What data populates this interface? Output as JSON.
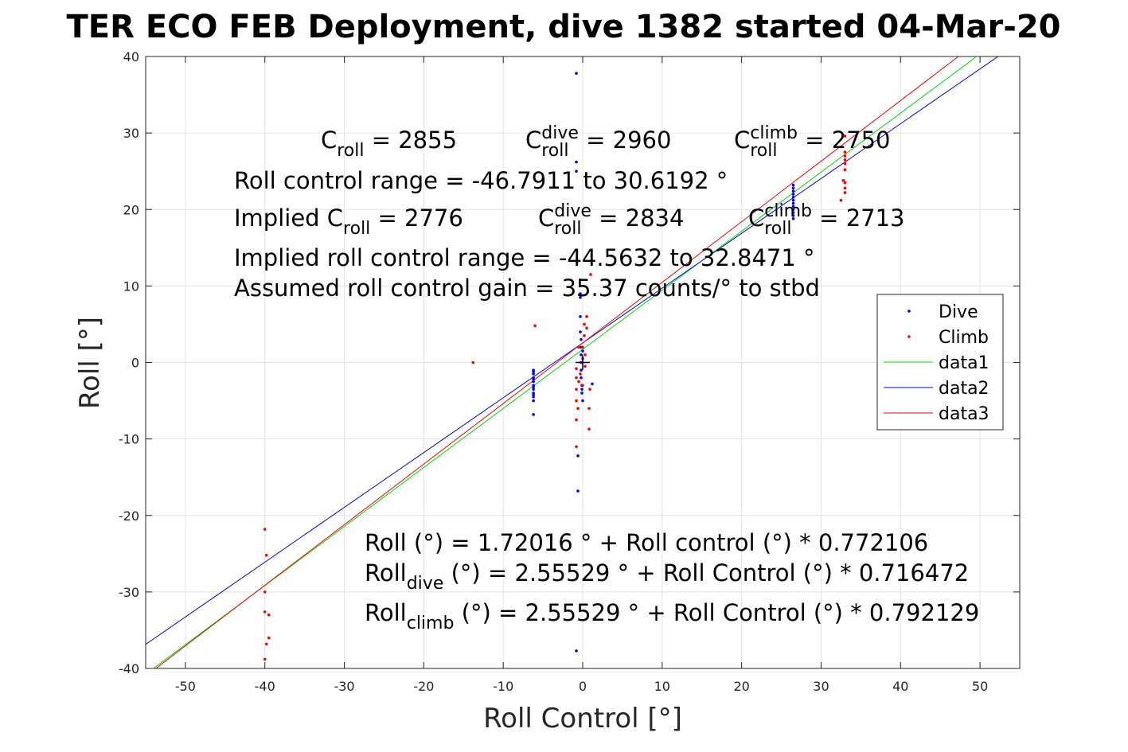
{
  "chart_data": {
    "type": "scatter",
    "title": "TER ECO FEB Deployment, dive 1382 started 04-Mar-20",
    "xlabel": "Roll Control [°]",
    "ylabel": "Roll [°]",
    "xlim": [
      -55,
      55
    ],
    "ylim": [
      -40,
      40
    ],
    "xticks": [
      -50,
      -40,
      -30,
      -20,
      -10,
      0,
      10,
      20,
      30,
      40,
      50
    ],
    "yticks": [
      -40,
      -30,
      -20,
      -10,
      0,
      10,
      20,
      30,
      40
    ],
    "grid": true,
    "legend_position": "right",
    "series": [
      {
        "name": "Dive",
        "kind": "points",
        "color": "#0000ff",
        "x": [
          -6.2,
          -6.2,
          -6.2,
          -6.2,
          -6.2,
          -6.2,
          -6.2,
          -6.2,
          -6.2,
          -6.2,
          -6.2,
          -6.2,
          -6.2,
          -6.2,
          -0.8,
          -0.8,
          -0.8,
          -0.8,
          -0.6,
          -0.6,
          -0.3,
          -0.3,
          -0.3,
          -0.3,
          -0.2,
          -0.2,
          -0.2,
          -0.2,
          -0.2,
          -0.2,
          -0.1,
          -0.1,
          -0.1,
          0,
          0,
          0,
          1.2,
          26.5,
          26.5,
          26.5,
          26.5,
          26.5,
          26.5,
          26.5,
          26.5,
          26.5,
          26.5,
          26.5,
          26.5
        ],
        "y": [
          -1,
          -1.5,
          -2,
          -2.5,
          -3,
          -3.5,
          -4,
          -4.5,
          -5,
          -6.8,
          -1.2,
          -2.2,
          -3.2,
          -4.2,
          37.8,
          26.2,
          25.0,
          -37.7,
          -16.8,
          -12.2,
          9.0,
          8.5,
          6.0,
          4.0,
          3.0,
          2.0,
          1.0,
          0,
          -1.0,
          -2.0,
          -3.0,
          -3.5,
          -4.0,
          -5.0,
          0.5,
          1.5,
          -2.8,
          23.2,
          22.8,
          22.4,
          22.0,
          21.6,
          21.2,
          20.8,
          20.4,
          20.0,
          19.6,
          19.2,
          18.8
        ]
      },
      {
        "name": "Climb",
        "kind": "points",
        "color": "#ff0000",
        "x": [
          -40,
          -39.8,
          -40,
          -40,
          -39.5,
          -39.5,
          -39.8,
          -40,
          -13.8,
          -6,
          -0.8,
          -0.8,
          -0.8,
          -0.8,
          -0.8,
          -0.8,
          -0.6,
          -0.5,
          -0.5,
          -0.3,
          -0.3,
          0,
          0,
          0,
          0.2,
          0.2,
          0.3,
          0.3,
          0.5,
          0.5,
          0.8,
          0.8,
          0.9,
          1,
          33,
          33,
          33,
          33,
          33,
          33,
          33,
          33,
          33,
          32.5,
          32.8
        ],
        "y": [
          -21.8,
          -25.2,
          -30,
          -32.6,
          -33,
          -36,
          -36.8,
          -38.8,
          0,
          4.8,
          -0.8,
          -2.0,
          -3.5,
          -5.0,
          -7.5,
          -11,
          -6.0,
          2.0,
          -2.5,
          10.8,
          -1.5,
          2.0,
          0.5,
          -3.0,
          3.5,
          5.0,
          1.0,
          -0.5,
          4.5,
          6.0,
          -6.0,
          -8.7,
          -3.5,
          11.5,
          29.6,
          27.5,
          27.0,
          26.5,
          26.0,
          25.2,
          23.5,
          22.8,
          22.2,
          21.2,
          23.8
        ]
      },
      {
        "name": "data1",
        "kind": "line",
        "color": "#00dd00",
        "x": [
          -55,
          55
        ],
        "y": [
          -40.75,
          44.19
        ]
      },
      {
        "name": "data2",
        "kind": "line",
        "color": "#0000ff",
        "x": [
          -55,
          55
        ],
        "y": [
          -36.85,
          41.96
        ]
      },
      {
        "name": "data3",
        "kind": "line",
        "color": "#ff0000",
        "x": [
          -55,
          55
        ],
        "y": [
          -41.01,
          46.12
        ]
      }
    ],
    "annotations": [
      {
        "id": "croll",
        "parts": [
          {
            "t": "C"
          },
          {
            "t": "roll",
            "sub": true
          },
          {
            "t": " = 2855"
          }
        ]
      },
      {
        "id": "croll-dive",
        "parts": [
          {
            "t": "C"
          },
          {
            "t": "dive",
            "sup": true
          },
          {
            "t": "roll",
            "sub": true
          },
          {
            "t": " = 2960"
          }
        ]
      },
      {
        "id": "croll-climb",
        "parts": [
          {
            "t": "C"
          },
          {
            "t": "climb",
            "sup": true
          },
          {
            "t": "roll",
            "sub": true
          },
          {
            "t": " = 2750"
          }
        ]
      },
      {
        "id": "range",
        "parts": [
          {
            "t": "Roll control range = -46.7911 to 30.6192 °"
          }
        ]
      },
      {
        "id": "implied-croll",
        "parts": [
          {
            "t": "Implied C"
          },
          {
            "t": "roll",
            "sub": true
          },
          {
            "t": " = 2776"
          }
        ]
      },
      {
        "id": "implied-croll-dive",
        "parts": [
          {
            "t": "C"
          },
          {
            "t": "dive",
            "sup": true
          },
          {
            "t": "roll",
            "sub": true
          },
          {
            "t": " = 2834"
          }
        ]
      },
      {
        "id": "implied-croll-climb",
        "parts": [
          {
            "t": "C"
          },
          {
            "t": "climb",
            "sup": true
          },
          {
            "t": "roll",
            "sub": true
          },
          {
            "t": " = 2713"
          }
        ]
      },
      {
        "id": "implied-range",
        "parts": [
          {
            "t": "Implied roll control range = -44.5632 to 32.8471 °"
          }
        ]
      },
      {
        "id": "gain",
        "parts": [
          {
            "t": "Assumed roll control gain = 35.37 counts/° to stbd"
          }
        ]
      },
      {
        "id": "fit-all",
        "parts": [
          {
            "t": "Roll (°) = 1.72016 ° + Roll control (°) * 0.772106"
          }
        ]
      },
      {
        "id": "fit-dive",
        "parts": [
          {
            "t": "Roll"
          },
          {
            "t": "dive",
            "sub": true
          },
          {
            "t": " (°) = 2.55529 ° + Roll Control (°) * 0.716472"
          }
        ]
      },
      {
        "id": "fit-climb",
        "parts": [
          {
            "t": "Roll"
          },
          {
            "t": "climb",
            "sub": true
          },
          {
            "t": " (°) = 2.55529 ° + Roll Control (°) * 0.792129"
          }
        ]
      }
    ]
  }
}
